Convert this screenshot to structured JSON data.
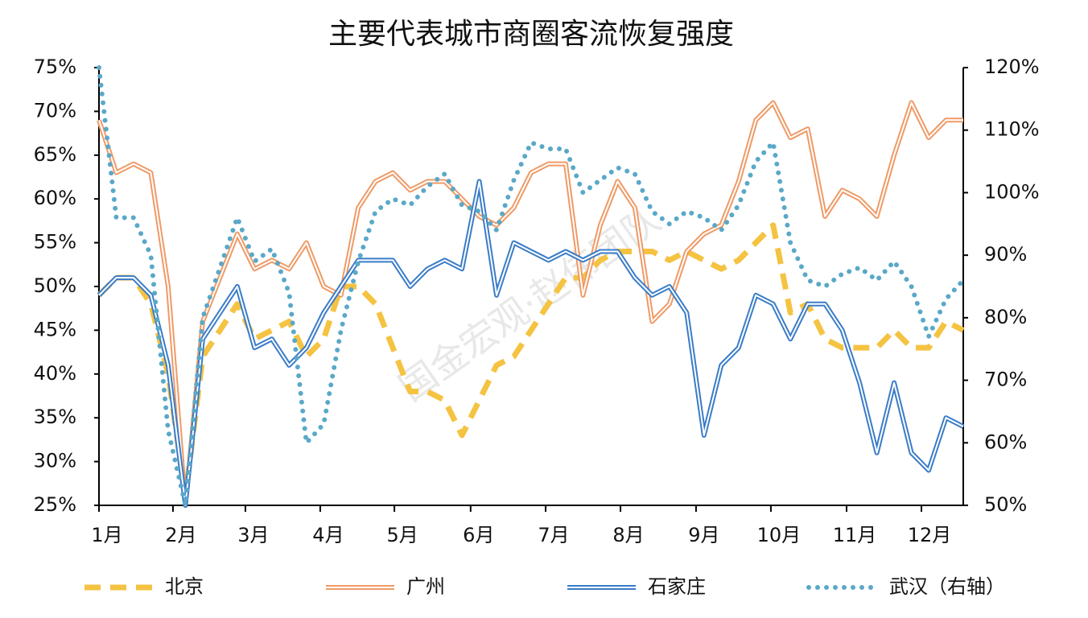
{
  "chart_data": {
    "type": "line",
    "title": "主要代表城市商圈客流恢复强度",
    "watermark": "国金宏观·赵伟团队",
    "x": [
      0,
      1,
      2,
      3,
      4,
      5,
      6,
      7,
      8,
      9,
      10,
      11,
      12,
      13,
      14,
      15,
      16,
      17,
      18,
      19,
      20,
      21,
      22,
      23,
      24,
      25,
      26,
      27,
      28,
      29,
      30,
      31,
      32,
      33,
      34,
      35,
      36,
      37,
      38,
      39,
      40,
      41,
      42,
      43,
      44,
      45,
      46,
      47,
      48,
      49,
      50
    ],
    "xlim": [
      0,
      50
    ],
    "xticks": [
      {
        "value": 0,
        "label": "1月"
      },
      {
        "value": 4.28,
        "label": "2月"
      },
      {
        "value": 8.47,
        "label": "3月"
      },
      {
        "value": 12.8,
        "label": "4月"
      },
      {
        "value": 17.09,
        "label": "5月"
      },
      {
        "value": 21.5,
        "label": "6月"
      },
      {
        "value": 25.84,
        "label": "7月"
      },
      {
        "value": 30.17,
        "label": "8月"
      },
      {
        "value": 34.54,
        "label": "9月"
      },
      {
        "value": 38.87,
        "label": "10月"
      },
      {
        "value": 43.25,
        "label": "11月"
      },
      {
        "value": 47.58,
        "label": "12月"
      }
    ],
    "ylim": [
      25,
      75
    ],
    "yticks": [
      {
        "value": 25,
        "label": "25%"
      },
      {
        "value": 30,
        "label": "30%"
      },
      {
        "value": 35,
        "label": "35%"
      },
      {
        "value": 40,
        "label": "40%"
      },
      {
        "value": 45,
        "label": "45%"
      },
      {
        "value": 50,
        "label": "50%"
      },
      {
        "value": 55,
        "label": "55%"
      },
      {
        "value": 60,
        "label": "60%"
      },
      {
        "value": 65,
        "label": "65%"
      },
      {
        "value": 70,
        "label": "70%"
      },
      {
        "value": 75,
        "label": "75%"
      }
    ],
    "y2lim": [
      50,
      120
    ],
    "y2ticks": [
      {
        "value": 50,
        "label": "50%"
      },
      {
        "value": 60,
        "label": "60%"
      },
      {
        "value": 70,
        "label": "70%"
      },
      {
        "value": 80,
        "label": "80%"
      },
      {
        "value": 90,
        "label": "90%"
      },
      {
        "value": 100,
        "label": "100%"
      },
      {
        "value": 110,
        "label": "110%"
      },
      {
        "value": 120,
        "label": "120%"
      }
    ],
    "legend": "bottom",
    "series": [
      {
        "name": "北京",
        "color": "#f5c342",
        "style": "dashed",
        "values": [
          49,
          51,
          51,
          48,
          40,
          26,
          42,
          45,
          48,
          44,
          45,
          46,
          42,
          44,
          50,
          50,
          48,
          43,
          38,
          38,
          37,
          33,
          37,
          41,
          42,
          45,
          48,
          51,
          51,
          53,
          54,
          54,
          54,
          53,
          54,
          53,
          52,
          53,
          55,
          57,
          47,
          48,
          44,
          43,
          43,
          43,
          45,
          43,
          43,
          46,
          45
        ]
      },
      {
        "name": "广州",
        "color": "#ef9a66",
        "style": "double",
        "values": [
          69,
          63,
          64,
          63,
          50,
          25,
          46,
          51,
          56,
          52,
          53,
          52,
          55,
          50,
          49,
          59,
          62,
          63,
          61,
          62,
          62,
          60,
          58,
          57,
          59,
          63,
          64,
          64,
          49,
          57,
          62,
          59,
          46,
          48,
          54,
          56,
          57,
          62,
          69,
          71,
          67,
          68,
          58,
          61,
          60,
          58,
          65,
          71,
          67,
          69,
          69
        ]
      },
      {
        "name": "石家庄",
        "color": "#3a7cc8",
        "style": "double",
        "values": [
          49,
          51,
          51,
          49,
          41,
          25,
          44,
          47,
          50,
          43,
          44,
          41,
          43,
          47,
          50,
          53,
          53,
          53,
          50,
          52,
          53,
          52,
          62,
          49,
          55,
          54,
          53,
          54,
          53,
          54,
          54,
          51,
          49,
          50,
          47,
          33,
          41,
          43,
          49,
          48,
          44,
          48,
          48,
          45,
          39,
          31,
          39,
          31,
          29,
          35,
          34
        ]
      },
      {
        "name": "武汉（右轴）",
        "color": "#5aa8c8",
        "style": "dotted",
        "axis": "y2",
        "values": [
          120,
          96,
          96,
          90,
          62,
          50,
          80,
          88,
          96,
          89,
          91,
          84,
          60,
          63,
          78,
          89,
          97,
          99,
          98,
          101,
          103,
          98,
          97,
          94,
          102,
          108,
          107,
          107,
          100,
          102,
          104,
          103,
          97,
          95,
          97,
          96,
          94,
          98,
          105,
          108,
          92,
          86,
          85,
          87,
          88,
          86,
          89,
          85,
          77,
          83,
          86
        ]
      }
    ]
  }
}
